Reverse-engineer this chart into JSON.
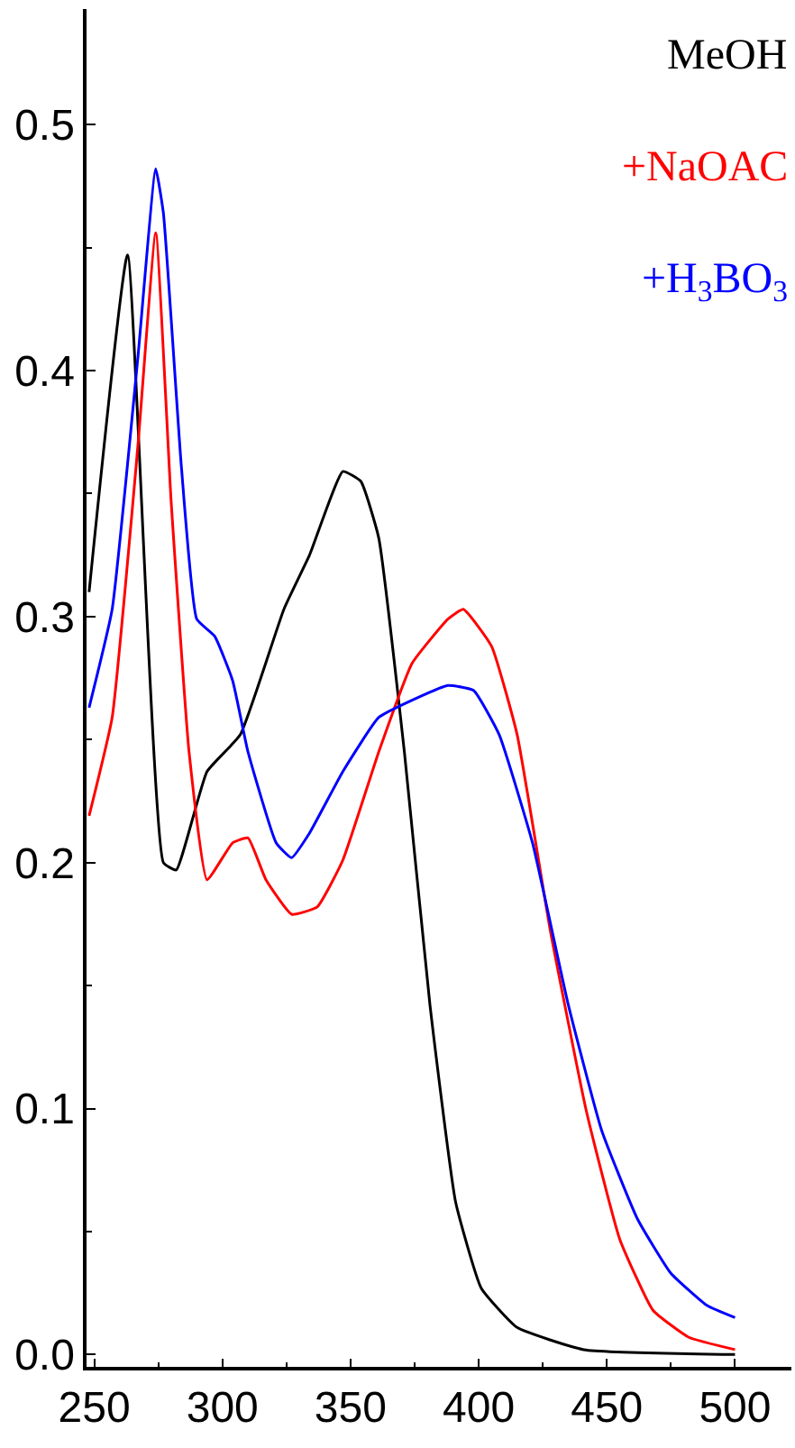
{
  "chart_data": {
    "type": "line",
    "xlim": [
      247,
      522
    ],
    "ylim": [
      -0.005,
      0.547
    ],
    "xticks": [
      250,
      300,
      350,
      400,
      450,
      500
    ],
    "yticks": [
      {
        "value": 0,
        "label": "0.0"
      },
      {
        "value": 0.1,
        "label": "0.1"
      },
      {
        "value": 0.2,
        "label": "0.2"
      },
      {
        "value": 0.3,
        "label": "0.3"
      },
      {
        "value": 0.4,
        "label": "0.4"
      },
      {
        "value": 0.5,
        "label": "0.5"
      }
    ],
    "legend": "top right",
    "marker": "none",
    "line_style": "solid",
    "series": [
      {
        "name": "MeOH",
        "color": "#000000",
        "x": [
          248,
          263,
          277,
          282,
          294,
          307,
          324,
          334,
          347,
          354,
          361,
          371,
          381,
          391,
          401,
          415,
          441,
          500
        ],
        "values": [
          0.31,
          0.447,
          0.2,
          0.197,
          0.237,
          0.252,
          0.303,
          0.325,
          0.359,
          0.355,
          0.332,
          0.245,
          0.142,
          0.062,
          0.027,
          0.011,
          0.002,
          0.0
        ]
      },
      {
        "name": "+NaOAC",
        "color": "#ff0000",
        "x": [
          248,
          257,
          267,
          274,
          280,
          287,
          294,
          304,
          310,
          317,
          327,
          337,
          347,
          361,
          374,
          388,
          394,
          405,
          415,
          428,
          442,
          455,
          468,
          482,
          500
        ],
        "values": [
          0.219,
          0.259,
          0.369,
          0.456,
          0.347,
          0.245,
          0.193,
          0.208,
          0.21,
          0.193,
          0.179,
          0.182,
          0.201,
          0.245,
          0.281,
          0.299,
          0.303,
          0.288,
          0.252,
          0.172,
          0.099,
          0.047,
          0.018,
          0.007,
          0.002
        ]
      },
      {
        "name": "+H$_{3}$BO$_{3}$",
        "color": "#0000ff",
        "x": [
          248,
          257,
          267,
          274,
          277,
          284,
          290,
          297,
          304,
          310,
          321,
          327,
          334,
          347,
          361,
          374,
          388,
          398,
          408,
          421,
          435,
          448,
          462,
          475,
          489,
          500
        ],
        "values": [
          0.263,
          0.303,
          0.405,
          0.482,
          0.464,
          0.361,
          0.299,
          0.292,
          0.274,
          0.245,
          0.208,
          0.202,
          0.212,
          0.237,
          0.259,
          0.266,
          0.272,
          0.27,
          0.252,
          0.208,
          0.142,
          0.091,
          0.055,
          0.033,
          0.02,
          0.015
        ]
      }
    ]
  }
}
